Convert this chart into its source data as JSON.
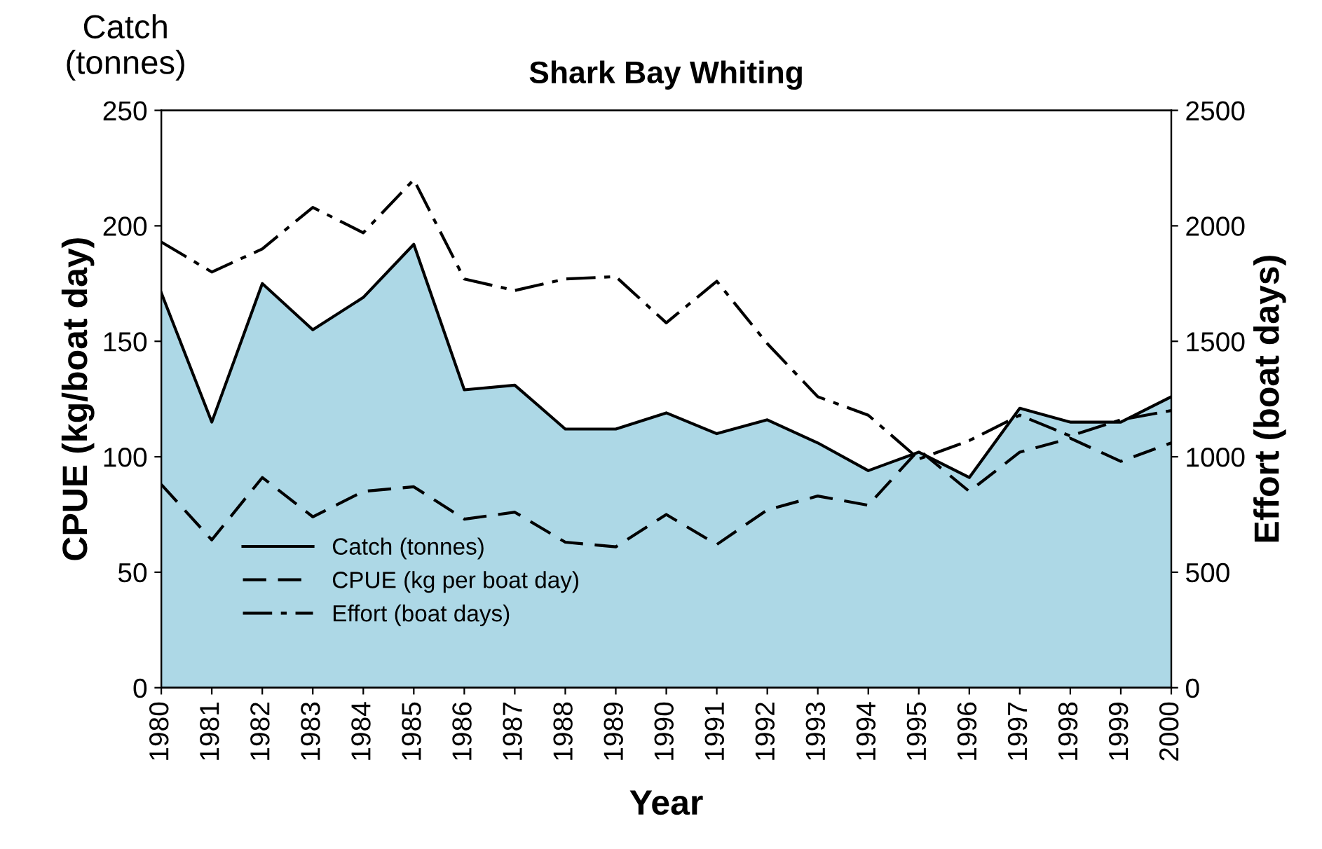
{
  "chart_data": {
    "type": "line",
    "title": "Shark Bay Whiting",
    "xlabel": "Year",
    "ylabel": "CPUE (kg/boat day)",
    "y2label": "Effort (boat days)",
    "annotations": [
      "Catch\n(tonnes)"
    ],
    "x": [
      1980,
      1981,
      1982,
      1983,
      1984,
      1985,
      1986,
      1987,
      1988,
      1989,
      1990,
      1991,
      1992,
      1993,
      1994,
      1995,
      1996,
      1997,
      1998,
      1999,
      2000
    ],
    "xlim": [
      1980,
      2000
    ],
    "xticks": [
      1980,
      1981,
      1982,
      1983,
      1984,
      1985,
      1986,
      1987,
      1988,
      1989,
      1990,
      1991,
      1992,
      1993,
      1994,
      1995,
      1996,
      1997,
      1998,
      1999,
      2000
    ],
    "ylim": [
      0,
      250
    ],
    "yticks": [
      0,
      50,
      100,
      150,
      200,
      250
    ],
    "y2lim": [
      0,
      2500
    ],
    "y2ticks": [
      0,
      500,
      1000,
      1500,
      2000,
      2500
    ],
    "legend": "bottom left",
    "grid": false,
    "series": [
      {
        "name": "Catch (tonnes)",
        "type": "area",
        "color": "#add8e6",
        "line_style": "solid",
        "values": [
          171,
          115,
          175,
          155,
          169,
          192,
          129,
          131,
          112,
          112,
          119,
          110,
          116,
          106,
          94,
          102,
          91,
          121,
          115,
          115,
          126
        ]
      },
      {
        "name": "CPUE (kg per boat day)",
        "color": "#000000",
        "line_style": "dashed",
        "values": [
          88,
          64,
          91,
          74,
          85,
          87,
          73,
          76,
          63,
          61,
          75,
          62,
          77,
          83,
          79,
          103,
          85,
          102,
          108,
          98,
          106
        ]
      },
      {
        "name": "Effort (boat days)",
        "color": "#000000",
        "line_style": "dashdot",
        "axis": "y2",
        "values": [
          1930,
          1800,
          1900,
          2080,
          1970,
          2200,
          1770,
          1720,
          1770,
          1780,
          1580,
          1760,
          1490,
          1260,
          1180,
          990,
          1070,
          1180,
          1090,
          1160,
          1200
        ]
      }
    ]
  }
}
